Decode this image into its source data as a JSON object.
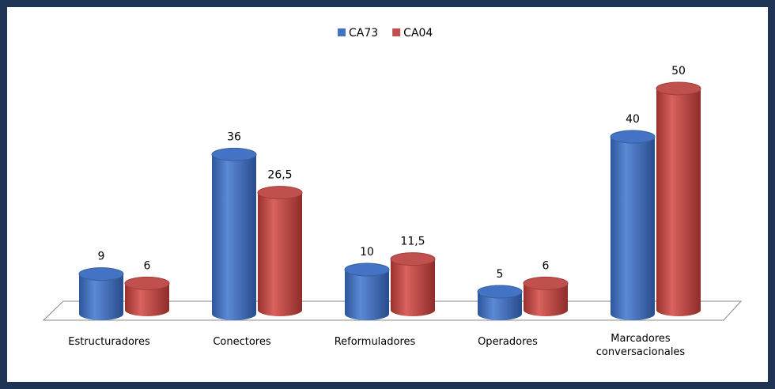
{
  "chart_data": {
    "type": "bar3d",
    "categories": [
      "Estructuradores",
      "Conectores",
      "Reformuladores",
      "Operadores",
      "Marcadores conversacionales"
    ],
    "series": [
      {
        "name": "CA73",
        "color": "#4472c4",
        "values": [
          9,
          36,
          10,
          5,
          40
        ]
      },
      {
        "name": "CA04",
        "color": "#c0504d",
        "values": [
          6,
          26.5,
          11.5,
          6,
          50
        ],
        "value_labels": [
          "6",
          "26,5",
          "11,5",
          "6",
          "50"
        ]
      }
    ],
    "legend": "top"
  }
}
